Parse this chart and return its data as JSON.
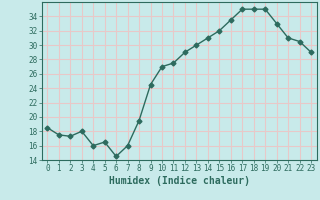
{
  "x": [
    0,
    1,
    2,
    3,
    4,
    5,
    6,
    7,
    8,
    9,
    10,
    11,
    12,
    13,
    14,
    15,
    16,
    17,
    18,
    19,
    20,
    21,
    22,
    23
  ],
  "y": [
    18.5,
    17.5,
    17.3,
    18.0,
    16.0,
    16.5,
    14.5,
    16.0,
    19.5,
    24.5,
    27.0,
    27.5,
    29.0,
    30.0,
    31.0,
    32.0,
    33.5,
    35.0,
    35.0,
    35.0,
    33.0,
    31.0,
    30.5,
    29.0
  ],
  "line_color": "#2d6b5e",
  "marker": "D",
  "marker_size": 2.5,
  "line_width": 1.0,
  "bg_color": "#c8eaea",
  "grid_color": "#e8c8c8",
  "xlabel": "Humidex (Indice chaleur)",
  "ylim": [
    14,
    36
  ],
  "xlim": [
    -0.5,
    23.5
  ],
  "yticks": [
    14,
    16,
    18,
    20,
    22,
    24,
    26,
    28,
    30,
    32,
    34
  ],
  "xticks": [
    0,
    1,
    2,
    3,
    4,
    5,
    6,
    7,
    8,
    9,
    10,
    11,
    12,
    13,
    14,
    15,
    16,
    17,
    18,
    19,
    20,
    21,
    22,
    23
  ],
  "tick_color": "#2d6b5e",
  "label_color": "#2d6b5e",
  "xlabel_fontsize": 7,
  "tick_fontsize": 5.5
}
